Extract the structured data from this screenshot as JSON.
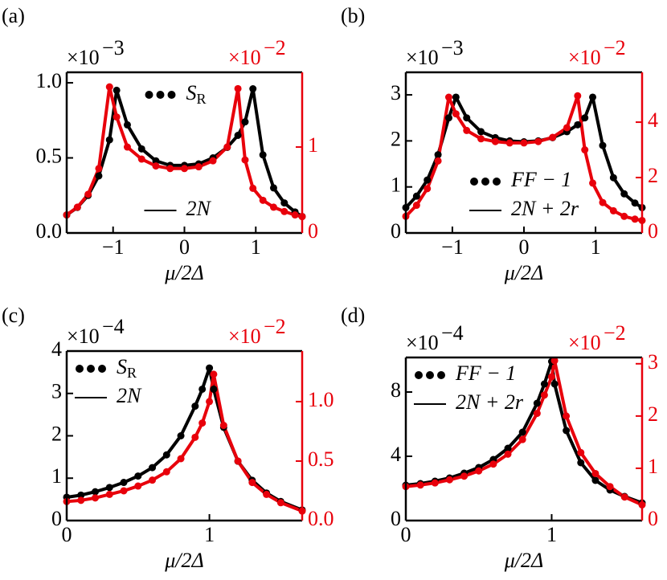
{
  "chart_data": [
    {
      "type": "line",
      "panel": "(a)",
      "xlabel": "μ/2Δ",
      "y_scale": "×10",
      "y_scale_exp": "−3",
      "y2_scale": "×10",
      "y2_scale_exp": "−2",
      "xlim": [
        -1.65,
        1.65
      ],
      "xticks": [
        {
          "value": -1,
          "label": "−1"
        },
        0,
        1
      ],
      "ylim": [
        0,
        1.07
      ],
      "yticks": [
        {
          "value": 0,
          "label": "0.0"
        },
        {
          "value": 0.5,
          "label": "0.5"
        },
        {
          "value": 1,
          "label": "1.0"
        }
      ],
      "y2lim": [
        0,
        1.87
      ],
      "y2ticks": [
        0,
        1
      ],
      "y2_color": "#e8000b",
      "legend": [
        "upper center",
        "lower center"
      ],
      "x": [
        -1.65,
        -1.5,
        -1.35,
        -1.2,
        -1.05,
        -0.95,
        -0.8,
        -0.6,
        -0.4,
        -0.2,
        0,
        0.2,
        0.4,
        0.6,
        0.75,
        0.85,
        0.96,
        1.1,
        1.25,
        1.4,
        1.55,
        1.65
      ],
      "series": [
        {
          "name": "S_R",
          "color": "#000000",
          "style": "dots",
          "values": [
            0.12,
            0.17,
            0.25,
            0.38,
            0.62,
            0.95,
            0.72,
            0.56,
            0.48,
            0.45,
            0.45,
            0.46,
            0.5,
            0.57,
            0.65,
            0.74,
            0.96,
            0.52,
            0.3,
            0.2,
            0.14,
            0.11
          ]
        },
        {
          "name": "2N",
          "color": "#000000",
          "style": "line",
          "values": [
            0.12,
            0.17,
            0.25,
            0.38,
            0.62,
            0.95,
            0.72,
            0.56,
            0.48,
            0.45,
            0.45,
            0.46,
            0.5,
            0.57,
            0.65,
            0.74,
            0.96,
            0.52,
            0.3,
            0.2,
            0.14,
            0.11
          ]
        },
        {
          "color": "#e8000b",
          "style": "dots",
          "axis": "y2",
          "values": [
            0.21,
            0.3,
            0.45,
            0.75,
            1.7,
            1.35,
            1.0,
            0.86,
            0.78,
            0.75,
            0.75,
            0.77,
            0.84,
            1.0,
            1.68,
            0.85,
            0.52,
            0.38,
            0.3,
            0.25,
            0.21,
            0.19
          ]
        },
        {
          "color": "#e8000b",
          "style": "line",
          "axis": "y2",
          "values": [
            0.21,
            0.3,
            0.45,
            0.75,
            1.7,
            1.35,
            1.0,
            0.86,
            0.78,
            0.75,
            0.75,
            0.77,
            0.84,
            1.0,
            1.68,
            0.85,
            0.52,
            0.38,
            0.3,
            0.25,
            0.21,
            0.19
          ]
        }
      ]
    },
    {
      "type": "line",
      "panel": "(b)",
      "xlabel": "μ/2Δ",
      "y_scale": "×10",
      "y_scale_exp": "−3",
      "y2_scale": "×10",
      "y2_scale_exp": "−2",
      "xlim": [
        -1.65,
        1.65
      ],
      "xticks": [
        {
          "value": -1,
          "label": "−1"
        },
        0,
        1
      ],
      "ylim": [
        0,
        3.49
      ],
      "yticks": [
        0,
        1,
        2,
        3
      ],
      "y2lim": [
        0,
        5.8
      ],
      "y2ticks": [
        0,
        2,
        4
      ],
      "y2_color": "#e8000b",
      "legend": "lower right",
      "x": [
        -1.65,
        -1.5,
        -1.35,
        -1.2,
        -1.05,
        -0.95,
        -0.8,
        -0.6,
        -0.4,
        -0.2,
        0,
        0.2,
        0.4,
        0.6,
        0.75,
        0.85,
        0.96,
        1.1,
        1.25,
        1.4,
        1.55,
        1.65
      ],
      "series": [
        {
          "name": "FF − 1",
          "color": "#000000",
          "style": "dots",
          "values": [
            0.55,
            0.8,
            1.15,
            1.7,
            2.5,
            2.95,
            2.5,
            2.2,
            2.07,
            2.0,
            1.98,
            2.0,
            2.07,
            2.2,
            2.35,
            2.5,
            2.95,
            1.9,
            1.2,
            0.85,
            0.65,
            0.55
          ]
        },
        {
          "name": "2N + 2r",
          "color": "#000000",
          "style": "line",
          "values": [
            0.55,
            0.8,
            1.15,
            1.7,
            2.5,
            2.95,
            2.5,
            2.2,
            2.07,
            2.0,
            1.98,
            2.0,
            2.07,
            2.2,
            2.35,
            2.5,
            2.95,
            1.9,
            1.2,
            0.85,
            0.65,
            0.55
          ]
        },
        {
          "color": "#e8000b",
          "style": "dots",
          "axis": "y2",
          "values": [
            0.6,
            1.0,
            1.6,
            2.6,
            4.9,
            4.3,
            3.7,
            3.4,
            3.3,
            3.25,
            3.25,
            3.3,
            3.45,
            3.8,
            4.95,
            3.0,
            1.8,
            1.1,
            0.8,
            0.6,
            0.5,
            0.45
          ]
        },
        {
          "color": "#e8000b",
          "style": "line",
          "axis": "y2",
          "values": [
            0.6,
            1.0,
            1.6,
            2.6,
            4.9,
            4.3,
            3.7,
            3.4,
            3.3,
            3.25,
            3.25,
            3.3,
            3.45,
            3.8,
            4.95,
            3.0,
            1.8,
            1.1,
            0.8,
            0.6,
            0.5,
            0.45
          ]
        }
      ]
    },
    {
      "type": "line",
      "panel": "(c)",
      "xlabel": "μ/2Δ",
      "y_scale": "×10",
      "y_scale_exp": "−4",
      "y2_scale": "×10",
      "y2_scale_exp": "−2",
      "xlim": [
        0,
        1.65
      ],
      "xticks": [
        0,
        1
      ],
      "ylim": [
        0,
        4
      ],
      "yticks": [
        0,
        1,
        2,
        3,
        4
      ],
      "y2lim": [
        0,
        1.425
      ],
      "y2ticks": [
        {
          "value": 0,
          "label": "0.0"
        },
        {
          "value": 0.5,
          "label": "0.5"
        },
        {
          "value": 1,
          "label": "1.0"
        }
      ],
      "y2_color": "#e8000b",
      "legend": "upper left",
      "x": [
        0,
        0.1,
        0.2,
        0.3,
        0.4,
        0.5,
        0.6,
        0.7,
        0.8,
        0.9,
        0.95,
        1.0,
        1.03,
        1.1,
        1.2,
        1.3,
        1.4,
        1.5,
        1.65
      ],
      "series": [
        {
          "name": "S_R",
          "color": "#000000",
          "style": "dots",
          "values": [
            0.55,
            0.6,
            0.68,
            0.78,
            0.9,
            1.05,
            1.25,
            1.55,
            2.0,
            2.7,
            3.1,
            3.6,
            3.1,
            2.2,
            1.4,
            0.95,
            0.65,
            0.45,
            0.25
          ]
        },
        {
          "name": "2N",
          "color": "#000000",
          "style": "line",
          "values": [
            0.55,
            0.6,
            0.68,
            0.78,
            0.9,
            1.05,
            1.25,
            1.55,
            2.0,
            2.7,
            3.1,
            3.6,
            3.1,
            2.2,
            1.4,
            0.95,
            0.65,
            0.45,
            0.25
          ]
        },
        {
          "color": "#e8000b",
          "style": "dots",
          "axis": "y2",
          "values": [
            0.16,
            0.17,
            0.19,
            0.22,
            0.25,
            0.29,
            0.34,
            0.41,
            0.52,
            0.7,
            0.82,
            1.0,
            1.23,
            0.8,
            0.5,
            0.32,
            0.22,
            0.15,
            0.08
          ]
        },
        {
          "color": "#e8000b",
          "style": "line",
          "axis": "y2",
          "values": [
            0.16,
            0.17,
            0.19,
            0.22,
            0.25,
            0.29,
            0.34,
            0.41,
            0.52,
            0.7,
            0.82,
            1.0,
            1.23,
            0.8,
            0.5,
            0.32,
            0.22,
            0.15,
            0.08
          ]
        }
      ]
    },
    {
      "type": "line",
      "panel": "(d)",
      "xlabel": "μ/2Δ",
      "y_scale": "×10",
      "y_scale_exp": "−4",
      "y2_scale": "×10",
      "y2_scale_exp": "−2",
      "xlim": [
        0,
        1.62
      ],
      "xticks": [
        0,
        1
      ],
      "ylim": [
        0,
        10.15
      ],
      "yticks": [
        0,
        4,
        8
      ],
      "y2lim": [
        0,
        3.12
      ],
      "y2ticks": [
        0,
        1,
        2,
        3
      ],
      "y2_color": "#e8000b",
      "legend": "upper left",
      "x": [
        0,
        0.1,
        0.2,
        0.3,
        0.4,
        0.5,
        0.6,
        0.7,
        0.8,
        0.9,
        0.95,
        1.0,
        1.02,
        1.1,
        1.2,
        1.3,
        1.4,
        1.5,
        1.62
      ],
      "series": [
        {
          "name": "FF − 1",
          "color": "#000000",
          "style": "dots",
          "values": [
            2.2,
            2.3,
            2.45,
            2.65,
            2.95,
            3.3,
            3.8,
            4.5,
            5.5,
            7.3,
            8.5,
            9.9,
            8.5,
            5.6,
            3.6,
            2.5,
            1.9,
            1.5,
            1.1
          ]
        },
        {
          "name": "2N + 2r",
          "color": "#000000",
          "style": "line",
          "values": [
            2.2,
            2.3,
            2.45,
            2.65,
            2.95,
            3.3,
            3.8,
            4.5,
            5.5,
            7.3,
            8.5,
            9.9,
            8.5,
            5.6,
            3.6,
            2.5,
            1.9,
            1.5,
            1.1
          ]
        },
        {
          "color": "#e8000b",
          "style": "dots",
          "axis": "y2",
          "values": [
            0.65,
            0.68,
            0.72,
            0.78,
            0.85,
            0.95,
            1.08,
            1.27,
            1.55,
            2.05,
            2.4,
            2.75,
            3.06,
            2.0,
            1.3,
            0.9,
            0.65,
            0.45,
            0.3
          ]
        },
        {
          "color": "#e8000b",
          "style": "line",
          "axis": "y2",
          "values": [
            0.65,
            0.68,
            0.72,
            0.78,
            0.85,
            0.95,
            1.08,
            1.27,
            1.55,
            2.05,
            2.4,
            2.75,
            3.06,
            2.0,
            1.3,
            0.9,
            0.65,
            0.45,
            0.3
          ]
        }
      ]
    }
  ]
}
